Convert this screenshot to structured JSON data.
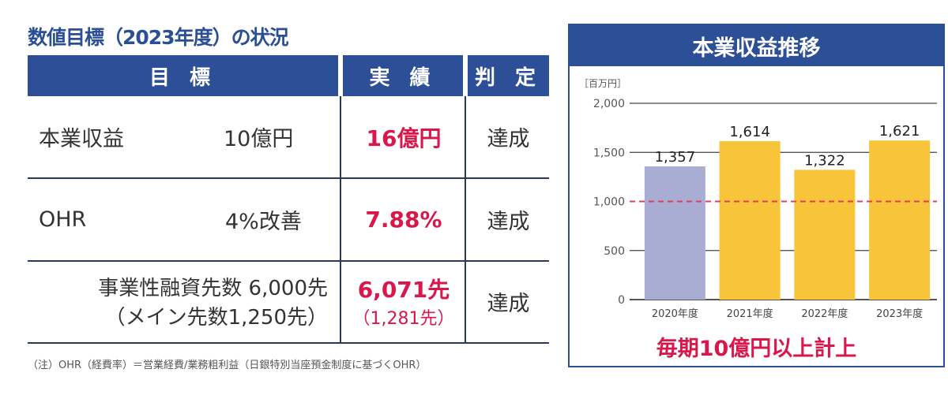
{
  "table": {
    "title": "数値目標（2023年度）の状況",
    "headers": [
      "目 標",
      "実 績",
      "判 定"
    ],
    "rows": [
      {
        "item": "本業収益",
        "target": "10億円",
        "result": "16億円",
        "result_sub": "",
        "judgement": "達成"
      },
      {
        "item": "OHR",
        "target": "4%改善",
        "result": "7.88%",
        "result_sub": "",
        "judgement": "達成"
      },
      {
        "item": "事業性融資先数 6,000先",
        "target": "（メイン先数1,250先）",
        "result": "6,071先",
        "result_sub": "（1,281先）",
        "judgement": "達成"
      }
    ],
    "note": "（注）OHR（経費率）＝営業経費/業務粗利益（日銀特別当座預金制度に基づくOHR）"
  },
  "chart_data": {
    "type": "bar",
    "title": "本業収益推移",
    "ylabel": "［百万円］",
    "categories": [
      "2020年度",
      "2021年度",
      "2022年度",
      "2023年度"
    ],
    "values": [
      1357,
      1614,
      1322,
      1621
    ],
    "value_labels": [
      "1,357",
      "1,614",
      "1,322",
      "1,621"
    ],
    "yticks": [
      0,
      500,
      1000,
      1500,
      2000
    ],
    "ytick_labels": [
      "0",
      "500",
      "1,000",
      "1,500",
      "2,000"
    ],
    "ylim": [
      0,
      2000
    ],
    "reference_line": 1000,
    "colors": [
      "#a9acd3",
      "#f7c43a",
      "#f7c43a",
      "#f7c43a"
    ],
    "reference_color": "#e0405a",
    "caption": "毎期10億円以上計上"
  }
}
